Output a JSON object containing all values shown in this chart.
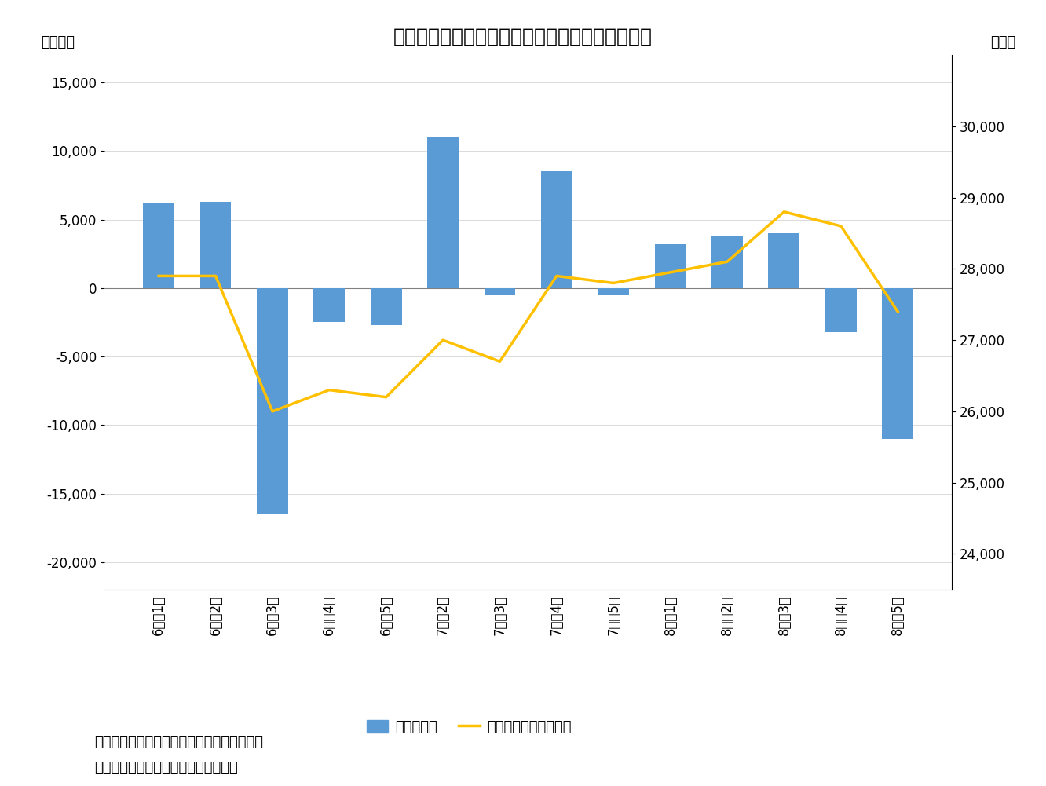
{
  "title": "図表３　海外投資家は８月第５週に大幅売り越し",
  "categories": [
    "6月\n第1週",
    "6月\n第2週",
    "6月\n第3週",
    "6月\n第4週",
    "6月\n第5週",
    "7月\n第2週",
    "7月\n第3週",
    "7月\n第4週",
    "7月\n第5週",
    "8月\n第1週",
    "8月\n第2週",
    "8月\n第3週",
    "8月\n第4週",
    "8月\n第5週"
  ],
  "bar_values": [
    6200,
    6300,
    -16500,
    -2500,
    -2700,
    11000,
    -500,
    8500,
    -500,
    3200,
    3800,
    4000,
    -3200,
    -11000
  ],
  "line_values": [
    27900,
    27900,
    26000,
    26300,
    26200,
    27000,
    26700,
    27900,
    27800,
    27950,
    28100,
    28800,
    28600,
    27400
  ],
  "bar_color": "#5B9BD5",
  "line_color": "#FFC000",
  "ylabel_left": "（億円）",
  "ylabel_right": "（円）",
  "ylim_left": [
    -22000,
    17000
  ],
  "ylim_right": [
    23500,
    31000
  ],
  "yticks_left": [
    -20000,
    -15000,
    -10000,
    -5000,
    0,
    5000,
    10000,
    15000
  ],
  "yticks_right": [
    24000,
    25000,
    26000,
    27000,
    28000,
    29000,
    30000
  ],
  "legend_bar_label": "海外投資家",
  "legend_line_label": "日経平均株価（右軸）",
  "note1": "（注）海外投資家の現物と先物の合計、週次",
  "note2": "（資料）ニッセイ基礎研ＤＢから作成",
  "background_color": "#FFFFFF",
  "title_fontsize": 18,
  "axis_fontsize": 13,
  "tick_fontsize": 12,
  "legend_fontsize": 13,
  "note_fontsize": 13
}
